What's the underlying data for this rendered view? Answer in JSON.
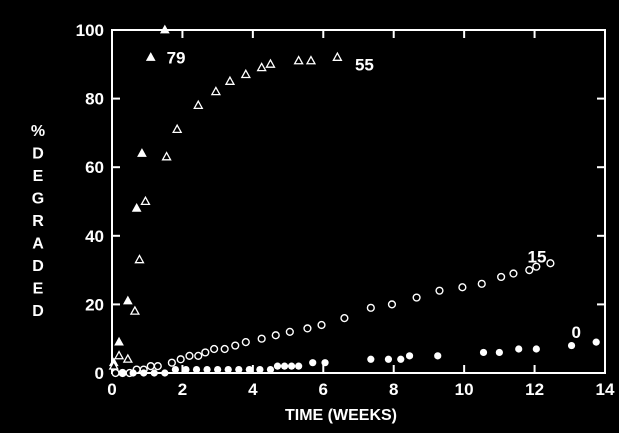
{
  "chart_data": {
    "type": "scatter",
    "xlabel": "TIME (WEEKS)",
    "ylabel_letters": [
      "%",
      "D",
      "E",
      "G",
      "R",
      "A",
      "D",
      "E",
      "D"
    ],
    "xlim": [
      0,
      14
    ],
    "ylim": [
      0,
      100
    ],
    "x_ticks": [
      0,
      2,
      4,
      6,
      8,
      10,
      12,
      14
    ],
    "y_ticks": [
      0,
      20,
      40,
      60,
      80,
      100
    ],
    "grid": false,
    "colors": {
      "background": "#000000",
      "foreground": "#ffffff"
    },
    "series": [
      {
        "name": "79",
        "marker": "filled-triangle",
        "label_at": [
          1.55,
          92
        ],
        "x": [
          0.05,
          0.2,
          0.45,
          0.7,
          0.85,
          1.1,
          1.5
        ],
        "y": [
          3,
          9,
          21,
          48,
          64,
          92,
          100
        ]
      },
      {
        "name": "55",
        "marker": "open-triangle",
        "label_at": [
          6.9,
          90
        ],
        "x": [
          0.05,
          0.2,
          0.45,
          0.65,
          0.78,
          0.95,
          1.55,
          1.85,
          2.45,
          2.95,
          3.35,
          3.8,
          4.25,
          4.5,
          5.3,
          5.65,
          6.4
        ],
        "y": [
          2,
          5,
          4,
          18,
          33,
          50,
          63,
          71,
          78,
          82,
          85,
          87,
          89,
          90,
          91,
          91,
          92
        ]
      },
      {
        "name": "15",
        "marker": "open-circle",
        "label_at": [
          11.8,
          34
        ],
        "x": [
          0.1,
          0.3,
          0.5,
          0.7,
          0.9,
          1.1,
          1.3,
          1.7,
          1.95,
          2.2,
          2.45,
          2.65,
          2.9,
          3.2,
          3.5,
          3.8,
          4.25,
          4.65,
          5.05,
          5.55,
          5.95,
          6.6,
          7.35,
          7.95,
          8.65,
          9.3,
          9.95,
          10.5,
          11.05,
          11.4,
          11.85,
          12.05,
          12.45
        ],
        "y": [
          0,
          0,
          0,
          1,
          1,
          2,
          2,
          3,
          4,
          5,
          5,
          6,
          7,
          7,
          8,
          9,
          10,
          11,
          12,
          13,
          14,
          16,
          19,
          20,
          22,
          24,
          25,
          26,
          28,
          29,
          30,
          31,
          32
        ]
      },
      {
        "name": "0",
        "marker": "filled-circle",
        "label_at": [
          13.05,
          12
        ],
        "x": [
          0.3,
          0.6,
          0.9,
          1.2,
          1.5,
          1.8,
          2.1,
          2.4,
          2.7,
          3.0,
          3.3,
          3.6,
          3.9,
          4.2,
          4.5,
          4.7,
          4.9,
          5.1,
          5.3,
          5.7,
          6.05,
          7.35,
          7.85,
          8.2,
          8.45,
          9.25,
          10.55,
          11.0,
          11.55,
          12.05,
          13.05,
          13.75
        ],
        "y": [
          0,
          0,
          0,
          0,
          0,
          1,
          1,
          1,
          1,
          1,
          1,
          1,
          1,
          1,
          1,
          2,
          2,
          2,
          2,
          3,
          3,
          4,
          4,
          4,
          5,
          5,
          6,
          6,
          7,
          7,
          8,
          9
        ]
      }
    ]
  }
}
